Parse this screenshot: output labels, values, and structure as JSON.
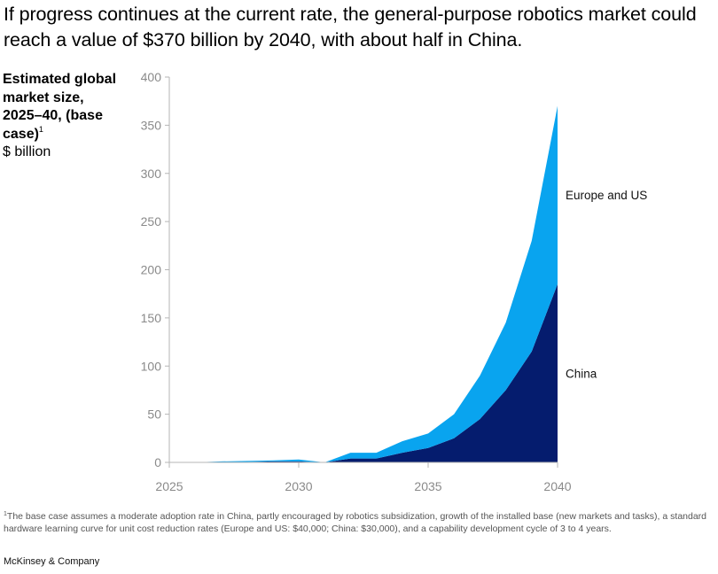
{
  "header": {
    "title": "If progress continues at the current rate, the general-purpose robotics market could reach a value of  $370 billion by 2040, with about half in China."
  },
  "chart_data": {
    "type": "area",
    "stacked": true,
    "title": "If progress continues at the current rate, the general-purpose robotics market could reach a value of  $370 billion by 2040, with about half in China.",
    "ylabel_title": "Estimated global market size, 2025–40, (base case)",
    "ylabel_sup": "1",
    "ylabel_unit": "$ billion",
    "ylim": [
      0,
      400
    ],
    "xlim": [
      2025,
      2040
    ],
    "y_ticks": [
      0,
      50,
      100,
      150,
      200,
      250,
      300,
      350,
      400
    ],
    "x_ticks": [
      2025,
      2030,
      2035,
      2040
    ],
    "x": [
      2025,
      2026,
      2027,
      2028,
      2029,
      2030,
      2031,
      2032,
      2033,
      2034,
      2035,
      2036,
      2037,
      2038,
      2039,
      2040
    ],
    "series": [
      {
        "name": "China",
        "color": "#051c6e",
        "values": [
          0,
          0,
          0,
          0.5,
          1,
          1,
          0,
          4,
          4,
          10,
          15,
          25,
          45,
          75,
          115,
          185
        ]
      },
      {
        "name": "Europe and US",
        "color": "#09a4ef",
        "values": [
          0,
          0,
          1,
          1,
          1,
          2,
          0,
          6,
          6,
          12,
          15,
          25,
          45,
          70,
          115,
          185
        ]
      }
    ],
    "grid": false,
    "legend": "inline-right"
  },
  "footnote": {
    "marker": "1",
    "text": "The base case assumes a moderate adoption rate in China, partly encouraged by robotics subsidization, growth of the installed base (new markets and tasks), a standard hardware learning curve for unit cost reduction rates (Europe and US: $40,000; China: $30,000), and a capability development cycle of 3 to 4 years."
  },
  "brand": "McKinsey & Company"
}
